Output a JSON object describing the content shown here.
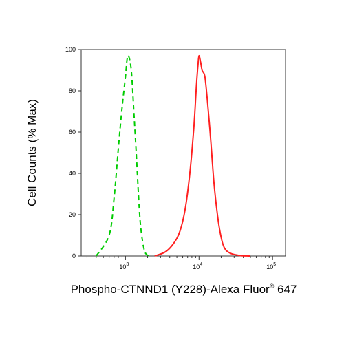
{
  "chart_data": {
    "type": "line",
    "title": "",
    "xlabel": "Phospho-CTNND1 (Y228)-Alexa Fluor",
    "xlabel_superscript": "®",
    "xlabel_suffix": " 647",
    "ylabel": "Cell Counts (% Max)",
    "x_scale": "log",
    "xlim": [
      250,
      150000
    ],
    "ylim": [
      0,
      100
    ],
    "x_ticks": [
      {
        "base": "10",
        "exp": "3",
        "value": 1000
      },
      {
        "base": "10",
        "exp": "4",
        "value": 10000
      },
      {
        "base": "10",
        "exp": "5",
        "value": 100000
      }
    ],
    "y_ticks": [
      "0",
      "20",
      "40",
      "60",
      "80",
      "100"
    ],
    "grid": false,
    "legend": "none",
    "series": [
      {
        "color": "#00cc00",
        "style": "dashed",
        "x": [
          400,
          600,
          700,
          800,
          900,
          1000,
          1050,
          1100,
          1200,
          1300,
          1400,
          1500,
          1600,
          1750,
          1900,
          2200
        ],
        "y": [
          0,
          10,
          28,
          52,
          72,
          87,
          95,
          97,
          90,
          70,
          50,
          30,
          15,
          5,
          1,
          0
        ]
      },
      {
        "color": "#ff2020",
        "style": "solid",
        "x": [
          2500,
          3500,
          4500,
          5500,
          6500,
          7500,
          8500,
          9200,
          9700,
          10000,
          10500,
          11000,
          12000,
          13000,
          14000,
          15000,
          16000,
          17500,
          19000,
          21000,
          23000,
          26000,
          30000,
          35000,
          40000,
          50000
        ],
        "y": [
          0,
          2,
          6,
          12,
          23,
          40,
          62,
          82,
          93,
          97,
          94,
          90,
          87,
          75,
          62,
          48,
          35,
          22,
          13,
          6,
          3,
          1.5,
          0.7,
          0.3,
          0.1,
          0
        ]
      }
    ]
  }
}
